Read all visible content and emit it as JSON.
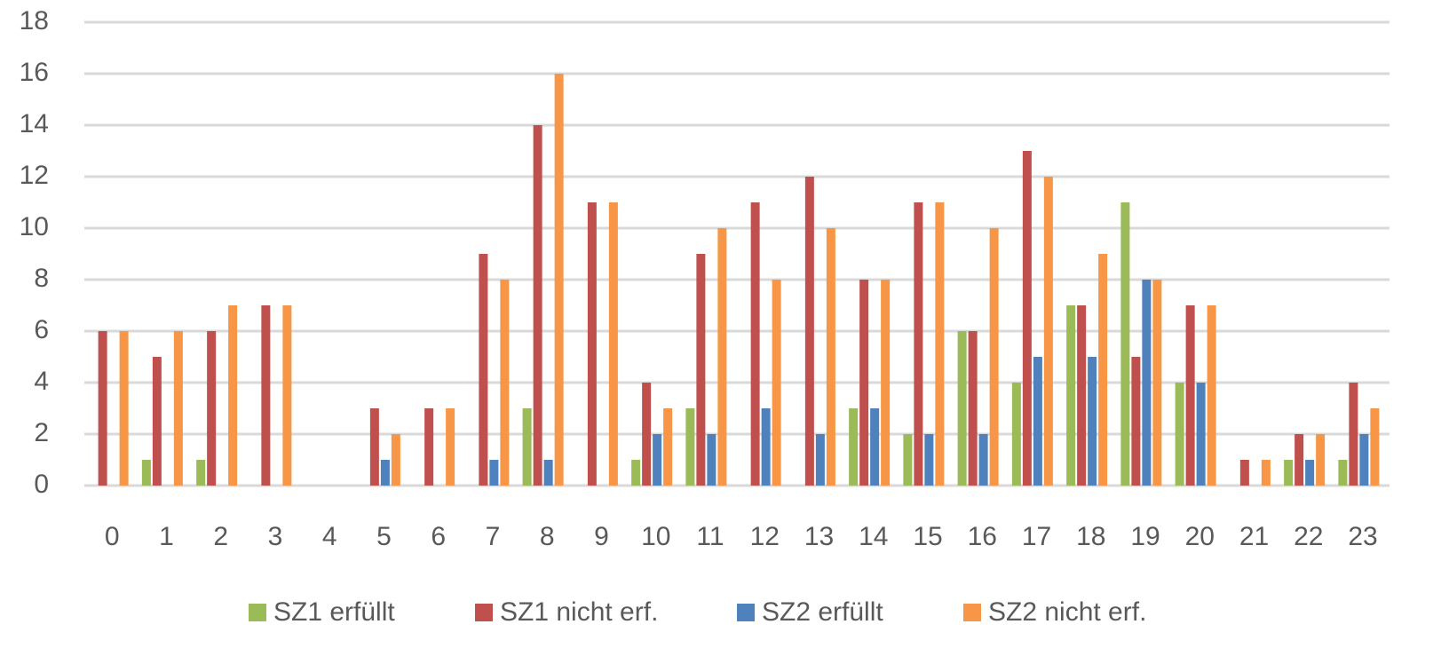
{
  "chart_data": {
    "type": "bar",
    "categories": [
      "0",
      "1",
      "2",
      "3",
      "4",
      "5",
      "6",
      "7",
      "8",
      "9",
      "10",
      "11",
      "12",
      "13",
      "14",
      "15",
      "16",
      "17",
      "18",
      "19",
      "20",
      "21",
      "22",
      "23"
    ],
    "series": [
      {
        "name": "SZ1 erfüllt",
        "color": "#9bbb59",
        "values": [
          0,
          1,
          1,
          0,
          0,
          0,
          0,
          0,
          3,
          0,
          1,
          3,
          0,
          0,
          3,
          2,
          6,
          4,
          7,
          11,
          4,
          0,
          1,
          1
        ]
      },
      {
        "name": "SZ1 nicht erf.",
        "color": "#c0504d",
        "values": [
          6,
          5,
          6,
          7,
          0,
          3,
          3,
          9,
          14,
          11,
          4,
          9,
          11,
          12,
          8,
          11,
          6,
          13,
          7,
          5,
          7,
          1,
          2,
          4
        ]
      },
      {
        "name": "SZ2 erfüllt",
        "color": "#4f81bd",
        "values": [
          0,
          0,
          0,
          0,
          0,
          1,
          0,
          1,
          1,
          0,
          2,
          2,
          3,
          2,
          3,
          2,
          2,
          5,
          5,
          8,
          4,
          0,
          1,
          2
        ]
      },
      {
        "name": "SZ2 nicht erf.",
        "color": "#f79646",
        "values": [
          6,
          6,
          7,
          7,
          0,
          2,
          3,
          8,
          16,
          11,
          3,
          10,
          8,
          10,
          8,
          11,
          10,
          12,
          9,
          8,
          7,
          1,
          2,
          3
        ]
      }
    ],
    "ylim": [
      0,
      18
    ],
    "yticks": [
      0,
      2,
      4,
      6,
      8,
      10,
      12,
      14,
      16,
      18
    ],
    "grid": true,
    "legend": "bottom"
  }
}
